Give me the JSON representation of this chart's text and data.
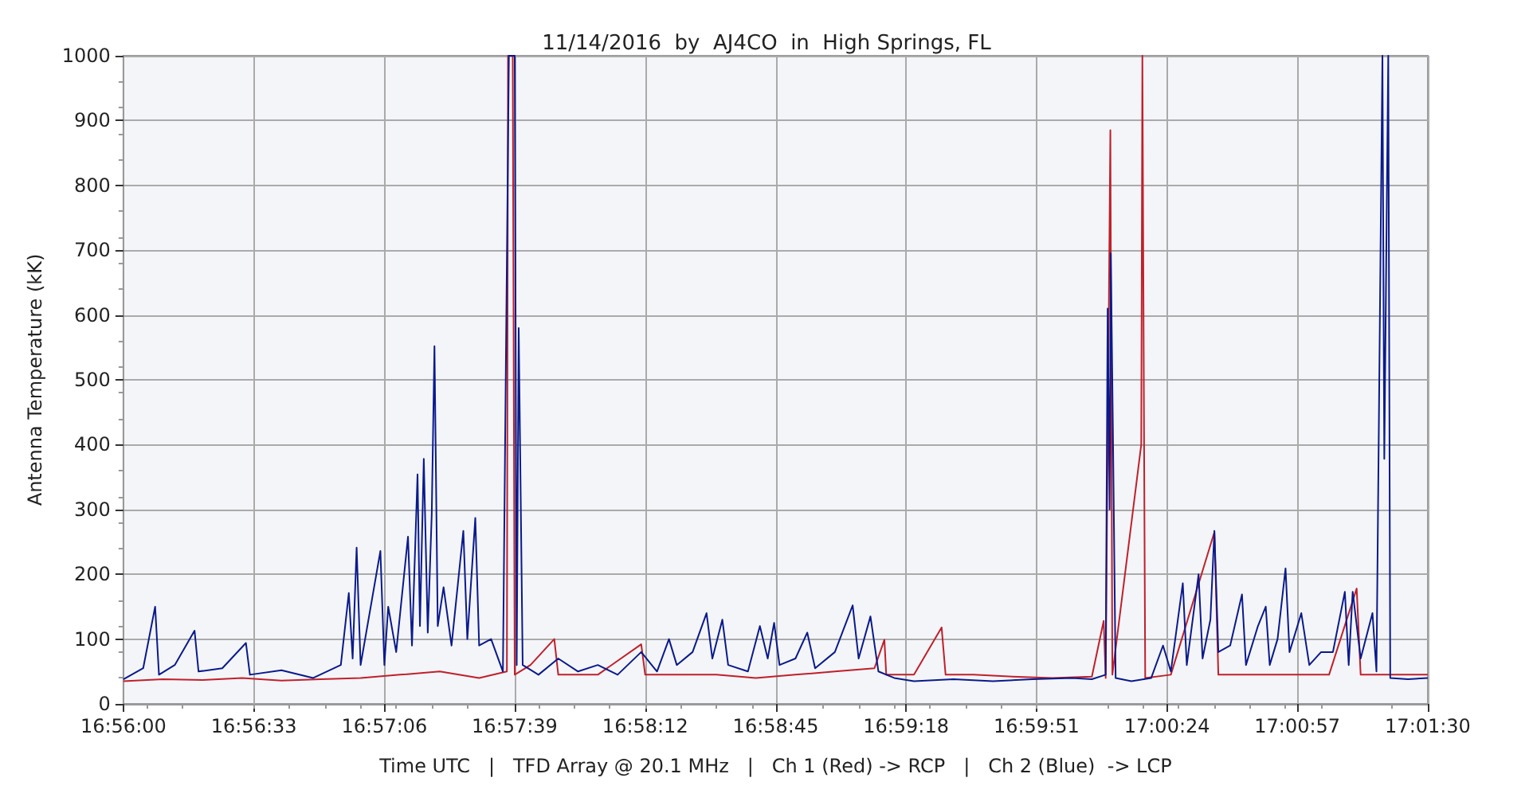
{
  "chart_data": {
    "type": "line",
    "title": "11/14/2016  by  AJ4CO  in  High Springs, FL",
    "xlabel": "Time UTC   |   TFD Array @ 20.1 MHz   |   Ch 1 (Red) -> RCP   |   Ch 2 (Blue)  -> LCP",
    "ylabel": "Antenna Temperature (kK)",
    "xlim": [
      16.93333,
      17.025
    ],
    "xticks": [
      {
        "value": 16.93333,
        "label": "16:56:00"
      },
      {
        "value": 16.9425,
        "label": "16:56:33"
      },
      {
        "value": 16.95167,
        "label": "16:57:06"
      },
      {
        "value": 16.96083,
        "label": "16:57:39"
      },
      {
        "value": 16.97,
        "label": "16:58:12"
      },
      {
        "value": 16.97917,
        "label": "16:58:45"
      },
      {
        "value": 16.98833,
        "label": "16:59:18"
      },
      {
        "value": 16.9975,
        "label": "16:59:51"
      },
      {
        "value": 17.00667,
        "label": "17:00:24"
      },
      {
        "value": 17.01583,
        "label": "17:00:57"
      },
      {
        "value": 17.025,
        "label": "17:01:30"
      }
    ],
    "ylim": [
      0,
      1000
    ],
    "yticks": [
      0,
      100,
      200,
      300,
      400,
      500,
      600,
      700,
      800,
      900,
      1000
    ],
    "grid": true,
    "marker": "none",
    "line_style": "solid",
    "series": [
      {
        "color": "#c0202a",
        "x": [
          16.93333,
          16.93611,
          16.93889,
          16.94167,
          16.94444,
          16.94722,
          16.95,
          16.95278,
          16.95556,
          16.95833,
          16.96028,
          16.96036,
          16.96069,
          16.96083,
          16.96194,
          16.96361,
          16.96389,
          16.96667,
          16.96972,
          16.97,
          16.97222,
          16.975,
          16.97778,
          16.98056,
          16.98333,
          16.98611,
          16.98681,
          16.98694,
          16.98889,
          16.99083,
          16.99111,
          16.99306,
          16.99583,
          16.99861,
          17.00139,
          17.00222,
          17.00236,
          17.00269,
          17.00283,
          17.00486,
          17.00494,
          17.00506,
          17.00514,
          17.00694,
          17.01,
          17.01028,
          17.0125,
          17.01528,
          17.01806,
          17.02,
          17.02028,
          17.02222,
          17.025
        ],
        "values": [
          35,
          38,
          37,
          40,
          36,
          38,
          40,
          45,
          50,
          40,
          50,
          1000,
          1000,
          45,
          60,
          100,
          45,
          45,
          92,
          45,
          45,
          45,
          40,
          45,
          50,
          55,
          99,
          45,
          45,
          118,
          45,
          45,
          42,
          40,
          42,
          128,
          40,
          885,
          45,
          400,
          1000,
          400,
          40,
          45,
          265,
          45,
          45,
          45,
          45,
          178,
          45,
          45,
          45
        ]
      },
      {
        "color": "#0a1a8c",
        "x": [
          16.93333,
          16.93472,
          16.93556,
          16.93583,
          16.93694,
          16.93833,
          16.93861,
          16.94028,
          16.94194,
          16.94222,
          16.94444,
          16.94667,
          16.94861,
          16.94917,
          16.94944,
          16.94972,
          16.95,
          16.95139,
          16.95167,
          16.95194,
          16.9525,
          16.95333,
          16.95361,
          16.954,
          16.95417,
          16.95444,
          16.95472,
          16.955,
          16.95519,
          16.95542,
          16.95583,
          16.95639,
          16.95722,
          16.9575,
          16.95806,
          16.95833,
          16.95917,
          16.96,
          16.96042,
          16.96083,
          16.96097,
          16.96111,
          16.96139,
          16.9625,
          16.96389,
          16.96528,
          16.96667,
          16.96806,
          16.96972,
          16.97083,
          16.97167,
          16.97222,
          16.97333,
          16.97431,
          16.97472,
          16.97542,
          16.97583,
          16.97722,
          16.97806,
          16.97861,
          16.97906,
          16.97944,
          16.98056,
          16.98139,
          16.98194,
          16.98333,
          16.98458,
          16.985,
          16.98583,
          16.98639,
          16.9875,
          16.98889,
          16.99167,
          16.99444,
          16.99722,
          17.0,
          17.00139,
          17.00236,
          17.0025,
          17.00264,
          17.00272,
          17.00286,
          17.00306,
          17.00417,
          17.00556,
          17.00639,
          17.00694,
          17.00778,
          17.00806,
          17.00889,
          17.00917,
          17.00972,
          17.01,
          17.01028,
          17.01111,
          17.01194,
          17.01222,
          17.01306,
          17.01361,
          17.01389,
          17.01444,
          17.015,
          17.01528,
          17.01611,
          17.01667,
          17.0175,
          17.01833,
          17.01917,
          17.01944,
          17.01972,
          17.02028,
          17.02111,
          17.02139,
          17.02181,
          17.02194,
          17.02222,
          17.02236,
          17.02361,
          17.025
        ],
        "values": [
          38,
          55,
          150,
          45,
          60,
          113,
          50,
          55,
          94,
          45,
          52,
          40,
          60,
          171,
          70,
          241,
          60,
          236,
          60,
          150,
          80,
          258,
          90,
          354,
          120,
          378,
          110,
          294,
          552,
          120,
          180,
          90,
          267,
          100,
          287,
          90,
          100,
          50,
          1000,
          1000,
          60,
          580,
          60,
          45,
          70,
          50,
          60,
          45,
          80,
          50,
          100,
          60,
          80,
          140,
          70,
          130,
          60,
          50,
          120,
          70,
          125,
          60,
          70,
          110,
          55,
          80,
          152,
          70,
          135,
          50,
          40,
          35,
          38,
          35,
          38,
          40,
          38,
          45,
          610,
          300,
          695,
          438,
          40,
          35,
          40,
          90,
          50,
          186,
          60,
          200,
          70,
          130,
          267,
          80,
          90,
          169,
          60,
          120,
          150,
          60,
          100,
          209,
          80,
          140,
          60,
          80,
          80,
          173,
          60,
          173,
          70,
          140,
          50,
          1000,
          378,
          1000,
          40,
          38,
          40
        ]
      }
    ]
  }
}
